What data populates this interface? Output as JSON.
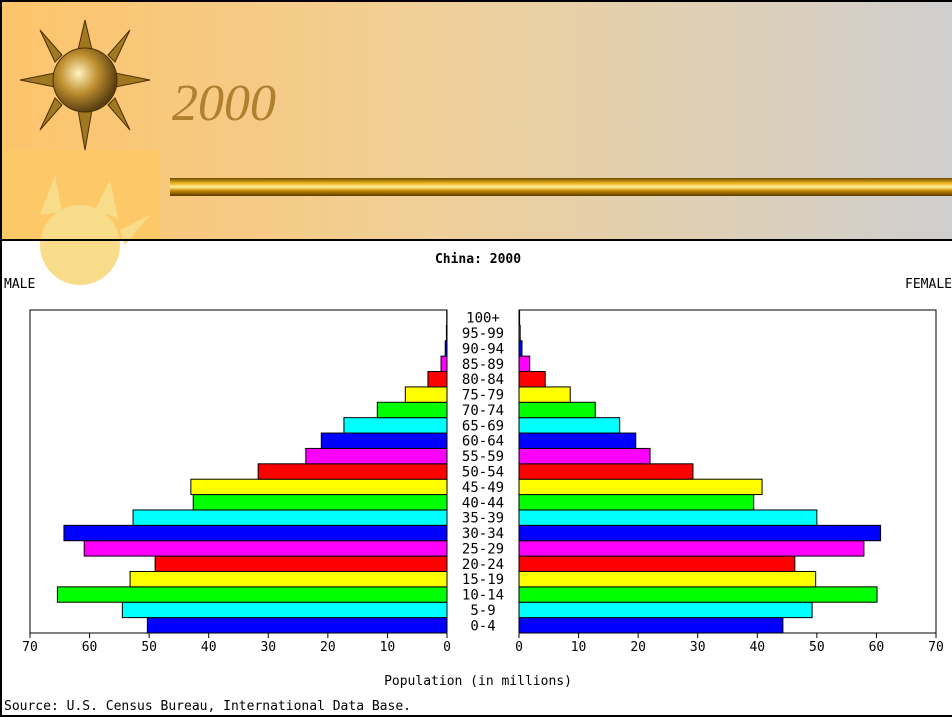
{
  "slide": {
    "title": "2000"
  },
  "chart_data": {
    "type": "pyramid",
    "title": "China: 2000",
    "categories": [
      "0-4",
      "5-9",
      "10-14",
      "15-19",
      "20-24",
      "25-29",
      "30-34",
      "35-39",
      "40-44",
      "45-49",
      "50-54",
      "55-59",
      "60-64",
      "65-69",
      "70-74",
      "75-79",
      "80-84",
      "85-89",
      "90-94",
      "95-99",
      "100+"
    ],
    "colors": [
      "#0000ff",
      "#00ffff",
      "#00ff00",
      "#ffff00",
      "#ff0000",
      "#ff00ff"
    ],
    "series": [
      {
        "name": "MALE",
        "values": [
          50.3,
          54.5,
          65.4,
          53.2,
          49,
          60.9,
          64.3,
          52.7,
          42.6,
          43,
          31.7,
          23.7,
          21.1,
          17.3,
          11.7,
          7,
          3.2,
          1,
          0.3,
          0.1,
          0.05
        ]
      },
      {
        "name": "FEMALE",
        "values": [
          44.3,
          49.2,
          60.1,
          49.8,
          46.3,
          57.9,
          60.7,
          50,
          39.4,
          40.8,
          29.2,
          22,
          19.6,
          16.9,
          12.8,
          8.6,
          4.4,
          1.8,
          0.5,
          0.2,
          0.1
        ]
      }
    ],
    "xlim": [
      0,
      70
    ],
    "xticks": [
      0,
      10,
      20,
      30,
      40,
      50,
      60,
      70
    ],
    "xlabel": "Population (in millions)",
    "source": "Source: U.S. Census Bureau, International Data Base."
  }
}
